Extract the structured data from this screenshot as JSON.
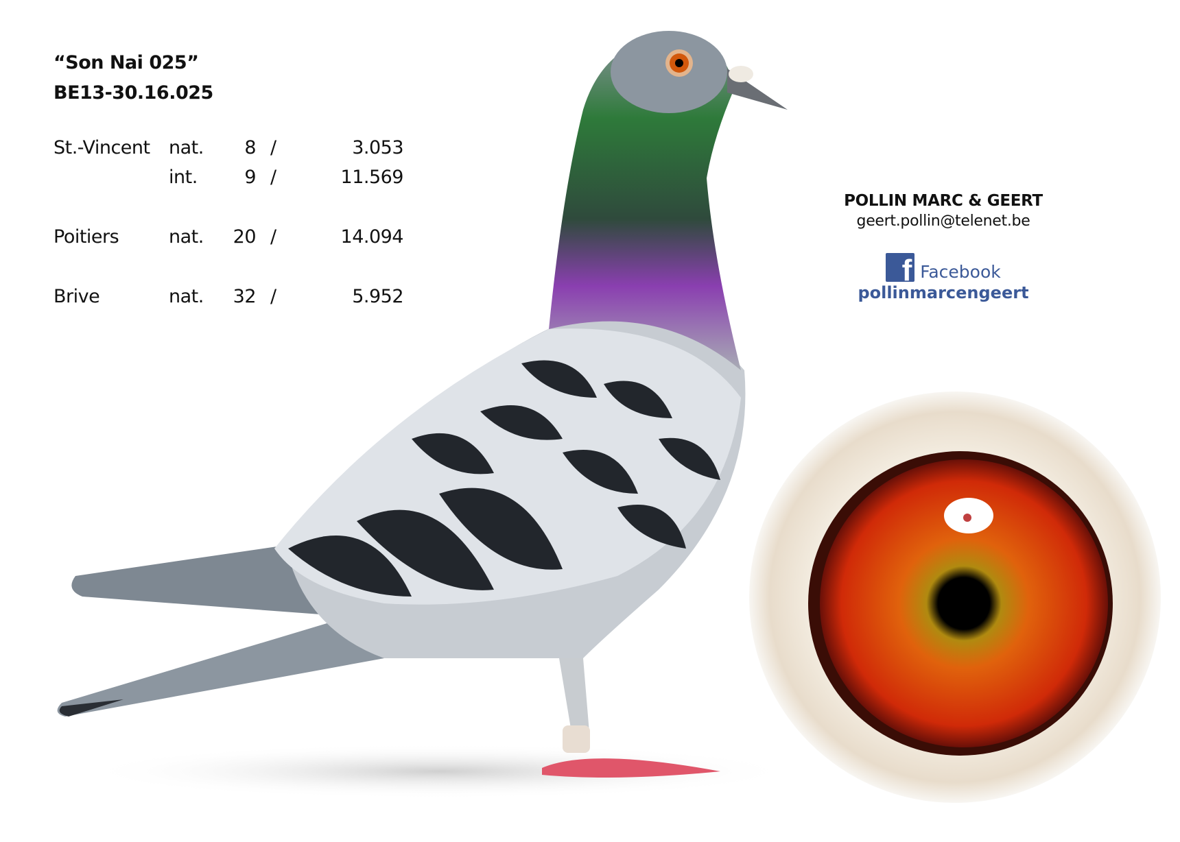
{
  "pigeon": {
    "name": "“Son Nai 025”",
    "ring": "BE13-30.16.025"
  },
  "results": [
    {
      "race": "St.-Vincent",
      "scope": "nat.",
      "position": "8",
      "slash": "/",
      "total": "3.053"
    },
    {
      "race": "",
      "scope": "int.",
      "position": "9",
      "slash": "/",
      "total": "11.569"
    },
    {
      "race": "Poitiers",
      "scope": "nat.",
      "position": "20",
      "slash": "/",
      "total": "14.094"
    },
    {
      "race": "Brive",
      "scope": "nat.",
      "position": "32",
      "slash": "/",
      "total": "5.952"
    }
  ],
  "contact": {
    "owner": "POLLIN MARC & GEERT",
    "email": "geert.pollin@telenet.be",
    "facebook_label": "Facebook",
    "facebook_user": "pollinmarcengeert",
    "facebook_glyph": "f",
    "facebook_color": "#3b5998"
  },
  "images": {
    "pigeon_photo": "pigeon-side-view",
    "eye_photo": "pigeon-eye-closeup"
  }
}
